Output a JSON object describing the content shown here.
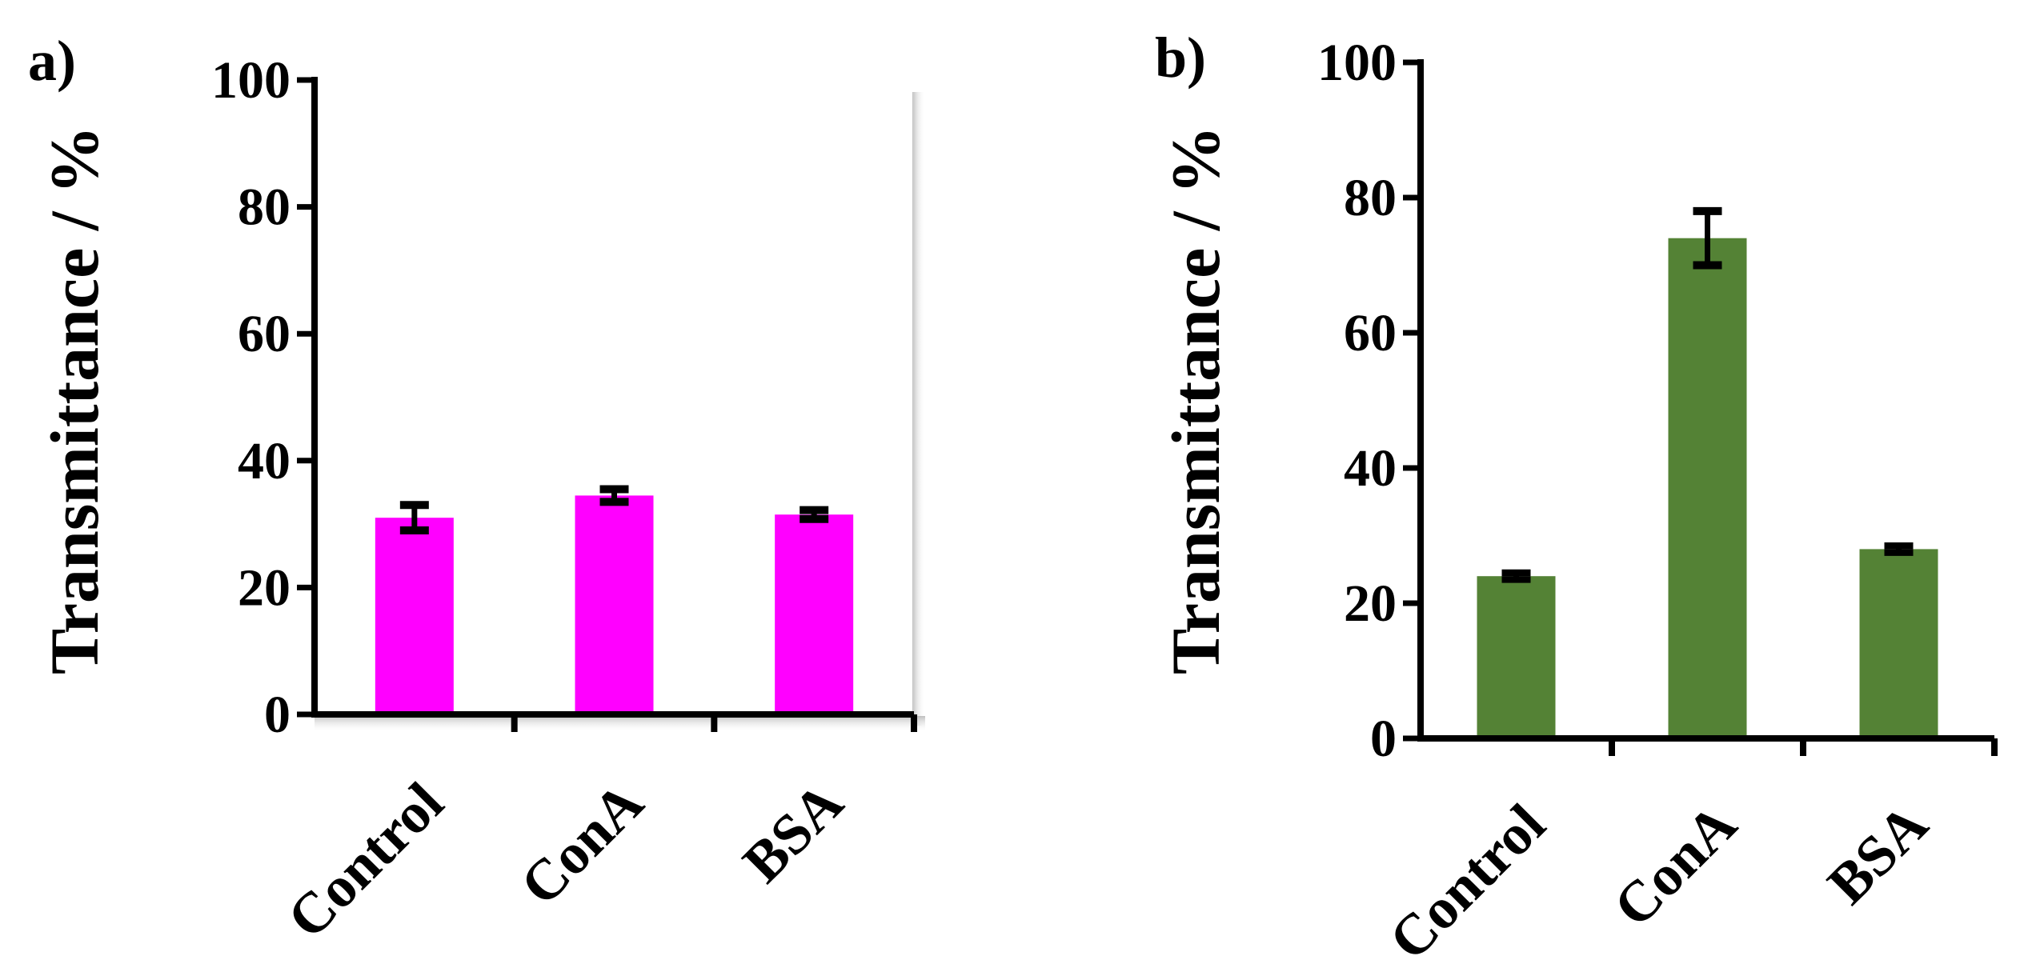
{
  "chart_data": [
    {
      "type": "bar",
      "panel_label": "a)",
      "categories": [
        "Control",
        "ConA",
        "BSA"
      ],
      "values": [
        31,
        34.5,
        31.5
      ],
      "errors": [
        2,
        1,
        0.7
      ],
      "ylabel": "Transmittance / %",
      "xlabel": "",
      "ylim": [
        0,
        100
      ],
      "yticks": [
        "0",
        "20",
        "40",
        "60",
        "80",
        "100"
      ],
      "bar_color": "#ff00ff",
      "grid": false,
      "frame_shadow": true
    },
    {
      "type": "bar",
      "panel_label": "b)",
      "categories": [
        "Control",
        "ConA",
        "BSA"
      ],
      "values": [
        24,
        74,
        28
      ],
      "errors": [
        0.5,
        4,
        0.5
      ],
      "ylabel": "Transmittance / %",
      "xlabel": "",
      "ylim": [
        0,
        100
      ],
      "yticks": [
        "0",
        "20",
        "40",
        "60",
        "80",
        "100"
      ],
      "bar_color": "#548235",
      "grid": false,
      "frame_shadow": false
    }
  ]
}
